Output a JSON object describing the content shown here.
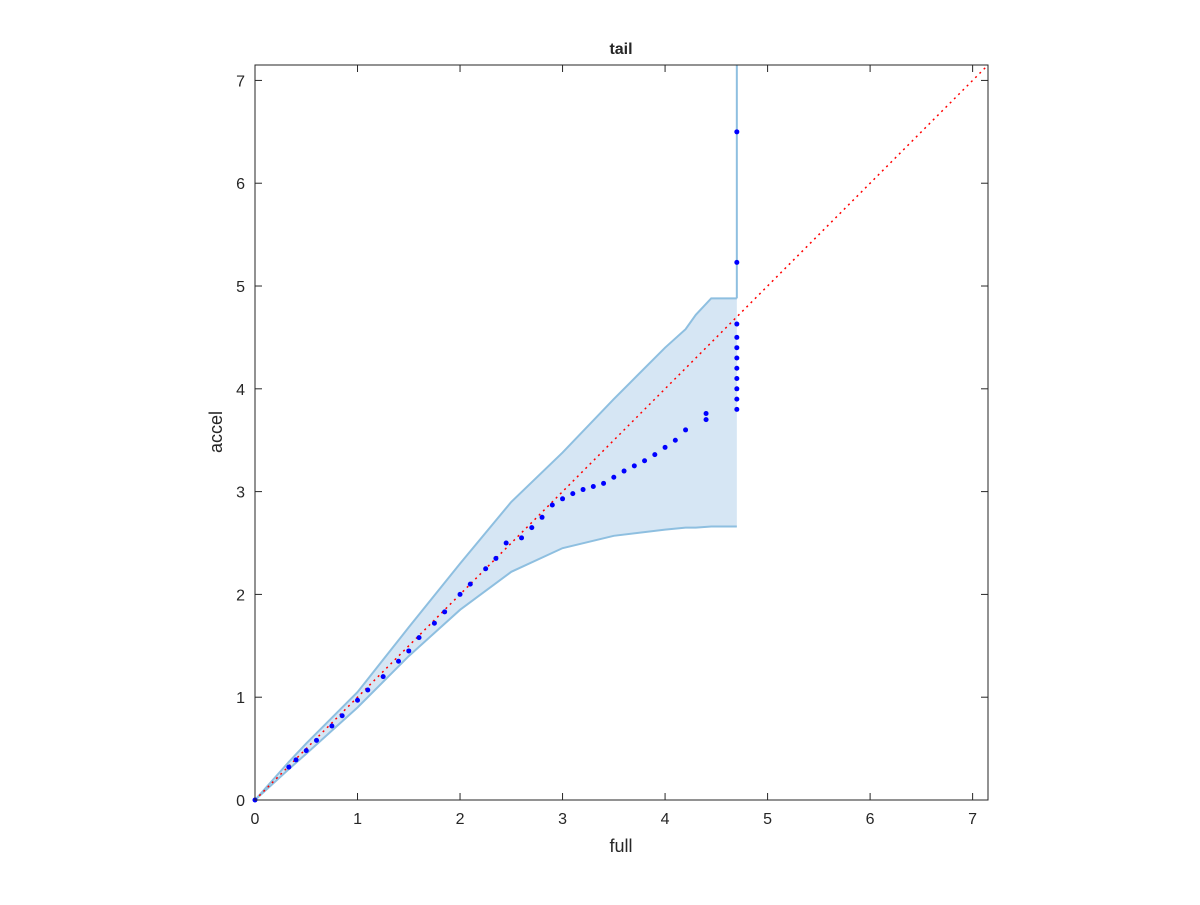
{
  "chart_data": {
    "type": "scatter",
    "title": "tail",
    "x_label": "full",
    "y_label": "accel",
    "xlim": [
      0,
      7.15
    ],
    "ylim": [
      0,
      7.15
    ],
    "xticks": [
      0,
      1,
      2,
      3,
      4,
      5,
      6,
      7
    ],
    "yticks": [
      0,
      1,
      2,
      3,
      4,
      5,
      6,
      7
    ],
    "series": [
      {
        "color": "#0000ff",
        "x": [
          0,
          0.33,
          0.4,
          0.5,
          0.6,
          0.75,
          0.85,
          1.0,
          1.1,
          1.25,
          1.4,
          1.5,
          1.6,
          1.75,
          1.85,
          2.0,
          2.1,
          2.25,
          2.35,
          2.45,
          2.6,
          2.7,
          2.8,
          2.9,
          3.0,
          3.1,
          3.2,
          3.3,
          3.4,
          3.5,
          3.6,
          3.7,
          3.8,
          3.9,
          4.0,
          4.1,
          4.2,
          4.4,
          4.4,
          4.7,
          4.7,
          4.7,
          4.7,
          4.7,
          4.7,
          4.7,
          4.7,
          4.7,
          4.7,
          4.7
        ],
        "values": [
          0,
          0.32,
          0.39,
          0.48,
          0.58,
          0.72,
          0.82,
          0.97,
          1.07,
          1.2,
          1.35,
          1.45,
          1.58,
          1.72,
          1.83,
          2.0,
          2.1,
          2.25,
          2.35,
          2.5,
          2.55,
          2.65,
          2.75,
          2.87,
          2.93,
          2.98,
          3.02,
          3.05,
          3.08,
          3.14,
          3.2,
          3.25,
          3.3,
          3.36,
          3.43,
          3.5,
          3.6,
          3.7,
          3.76,
          3.8,
          3.9,
          4.0,
          4.1,
          4.2,
          4.3,
          4.4,
          4.5,
          4.63,
          5.23,
          6.5
        ]
      }
    ],
    "band": {
      "fill": "#d6e6f4",
      "edge": "#8ebfe0",
      "x": [
        0,
        0.33,
        0.5,
        1.0,
        1.5,
        2.0,
        2.5,
        3.0,
        3.5,
        4.0,
        4.2,
        4.3,
        4.45,
        4.7
      ],
      "upper": [
        0,
        0.37,
        0.55,
        1.05,
        1.68,
        2.3,
        2.9,
        3.38,
        3.9,
        4.4,
        4.58,
        4.72,
        4.88,
        4.88
      ],
      "lower": [
        0,
        0.3,
        0.45,
        0.9,
        1.4,
        1.85,
        2.22,
        2.45,
        2.57,
        2.63,
        2.65,
        2.65,
        2.66,
        2.66
      ]
    },
    "reference_color": "#ff0000"
  }
}
